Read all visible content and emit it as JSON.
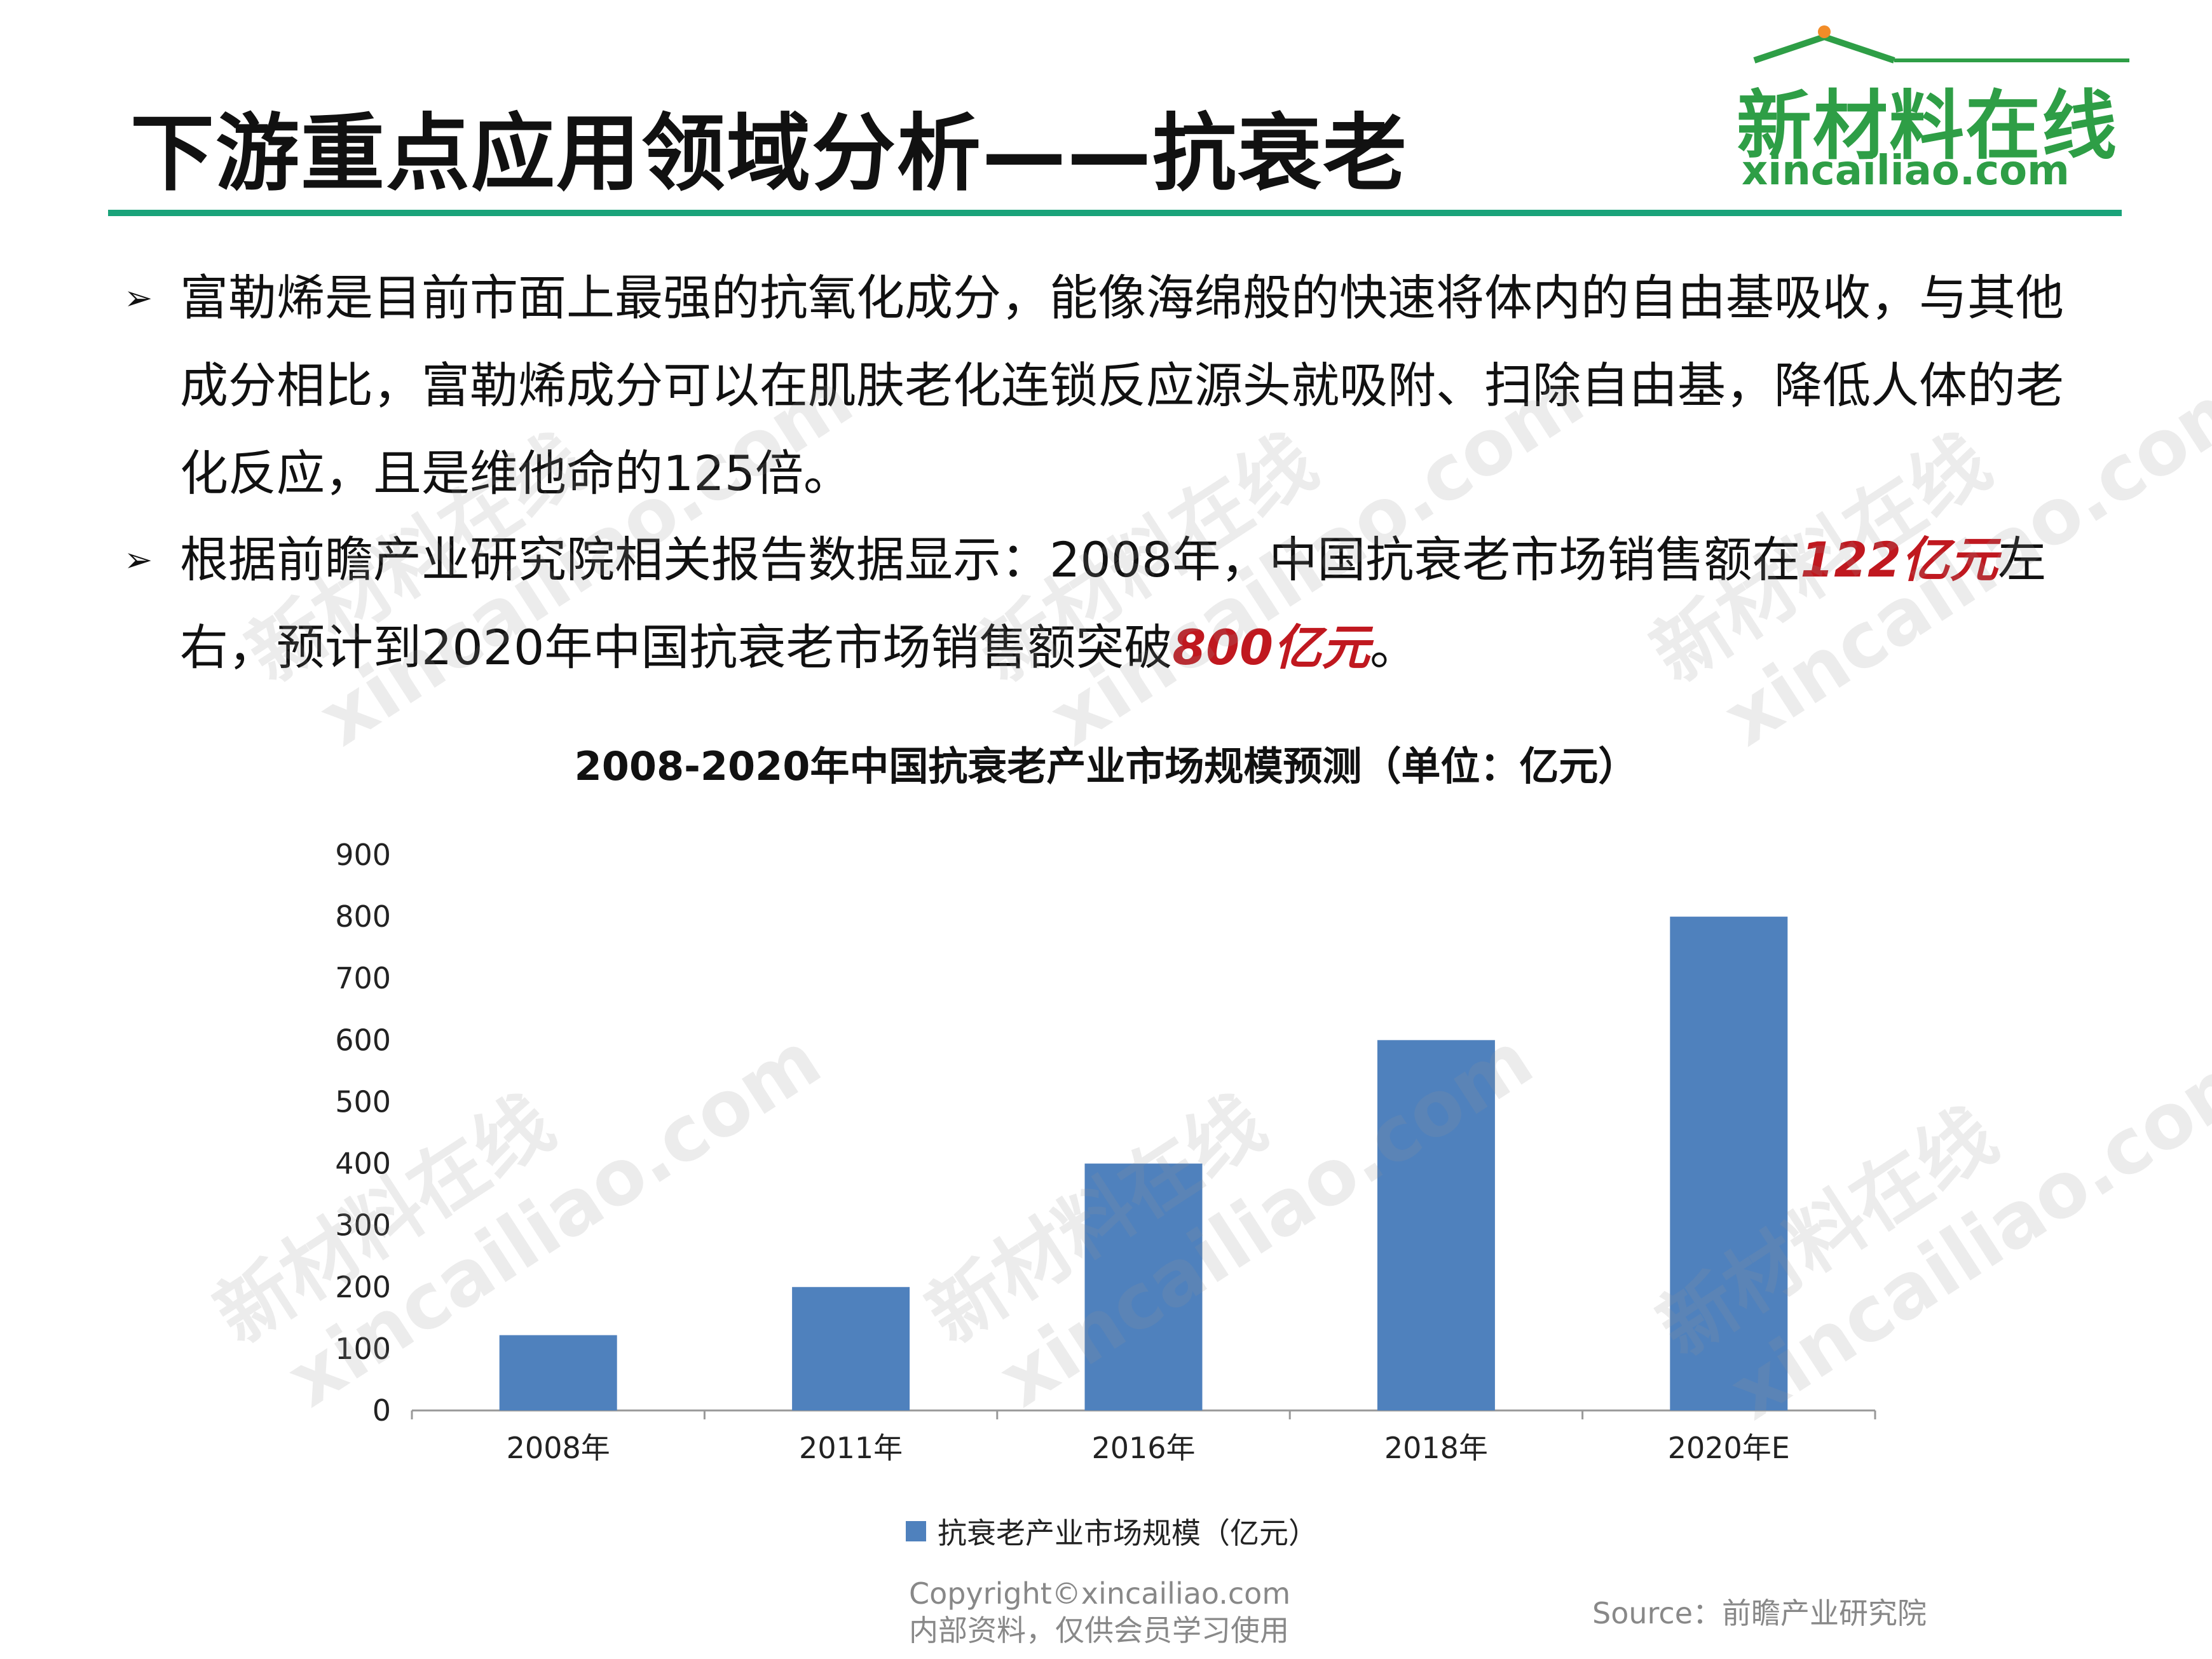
{
  "header": {
    "title": "下游重点应用领域分析——抗衰老",
    "logo_cn": "新材料在线",
    "logo_en": "xincailiao.com"
  },
  "bullets": [
    {
      "text": "富勒烯是目前市面上最强的抗氧化成分，能像海绵般的快速将体内的自由基吸收，与其他成分相比，富勒烯成分可以在肌肤老化连锁反应源头就吸附、扫除自由基，降低人体的老化反应，且是维他命的125倍。"
    },
    {
      "pre": "根据前瞻产业研究院相关报告数据显示：2008年，中国抗衰老市场销售额在",
      "hl1": "122亿元",
      "mid": "左右，预计到2020年中国抗衰老市场销售额突破",
      "hl2": "800亿元",
      "post": "。"
    }
  ],
  "chart_data": {
    "type": "bar",
    "title": "2008-2020年中国抗衰老产业市场规模预测（单位：亿元）",
    "categories": [
      "2008年",
      "2011年",
      "2016年",
      "2018年",
      "2020年E"
    ],
    "series": [
      {
        "name": "抗衰老产业市场规模（亿元）",
        "values": [
          122,
          200,
          400,
          600,
          800
        ],
        "color": "#4f81bd"
      }
    ],
    "ylim": [
      0,
      900
    ],
    "yticks": [
      0,
      100,
      200,
      300,
      400,
      500,
      600,
      700,
      800,
      900
    ],
    "grid": false,
    "legend": "bottom"
  },
  "footer": {
    "copyright_line1": "Copyright©xincailiao.com",
    "copyright_line2": "内部资料，仅供会员学习使用",
    "source": "Source：前瞻产业研究院"
  },
  "watermark": {
    "cn": "新材料在线",
    "en": "xincailiao.com"
  },
  "colors": {
    "accent_rule": "#1aa37a",
    "logo_green": "#2e9e46",
    "highlight_red": "#c0181f",
    "bar_blue": "#4f81bd"
  }
}
